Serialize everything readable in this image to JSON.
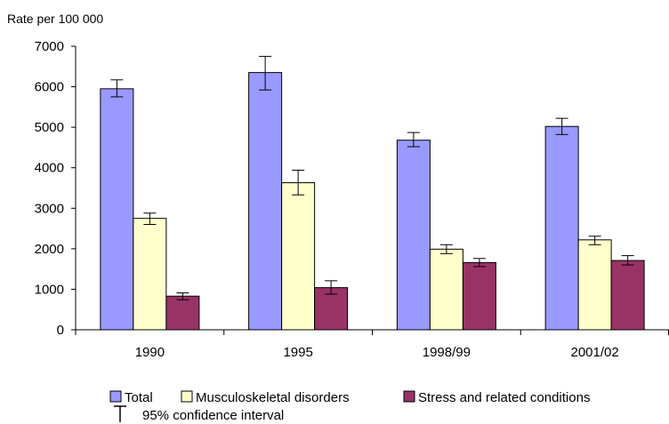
{
  "chart_data": {
    "type": "bar",
    "ylabel": "Rate per 100 000",
    "xlabel": "",
    "title": "",
    "categories": [
      "1990",
      "1995",
      "1998/99",
      "2001/02"
    ],
    "ylim": [
      0,
      7000
    ],
    "yticks": [
      0,
      1000,
      2000,
      3000,
      4000,
      5000,
      6000,
      7000
    ],
    "grid": false,
    "legend_position": "bottom",
    "series": [
      {
        "name": "Total",
        "color": "#9999ff",
        "values": [
          5950,
          6350,
          4680,
          5020
        ],
        "ci_low": [
          5750,
          5920,
          4520,
          4820
        ],
        "ci_high": [
          6170,
          6750,
          4870,
          5220
        ]
      },
      {
        "name": "Musculoskeletal disorders",
        "color": "#ffffcc",
        "values": [
          2750,
          3630,
          1990,
          2220
        ],
        "ci_low": [
          2600,
          3330,
          1880,
          2100
        ],
        "ci_high": [
          2880,
          3940,
          2100,
          2310
        ]
      },
      {
        "name": "Stress and related conditions",
        "color": "#993366",
        "values": [
          830,
          1040,
          1660,
          1710
        ],
        "ci_low": [
          740,
          880,
          1560,
          1600
        ],
        "ci_high": [
          910,
          1210,
          1760,
          1830
        ]
      }
    ],
    "ci_legend_label": "95% confidence interval"
  }
}
